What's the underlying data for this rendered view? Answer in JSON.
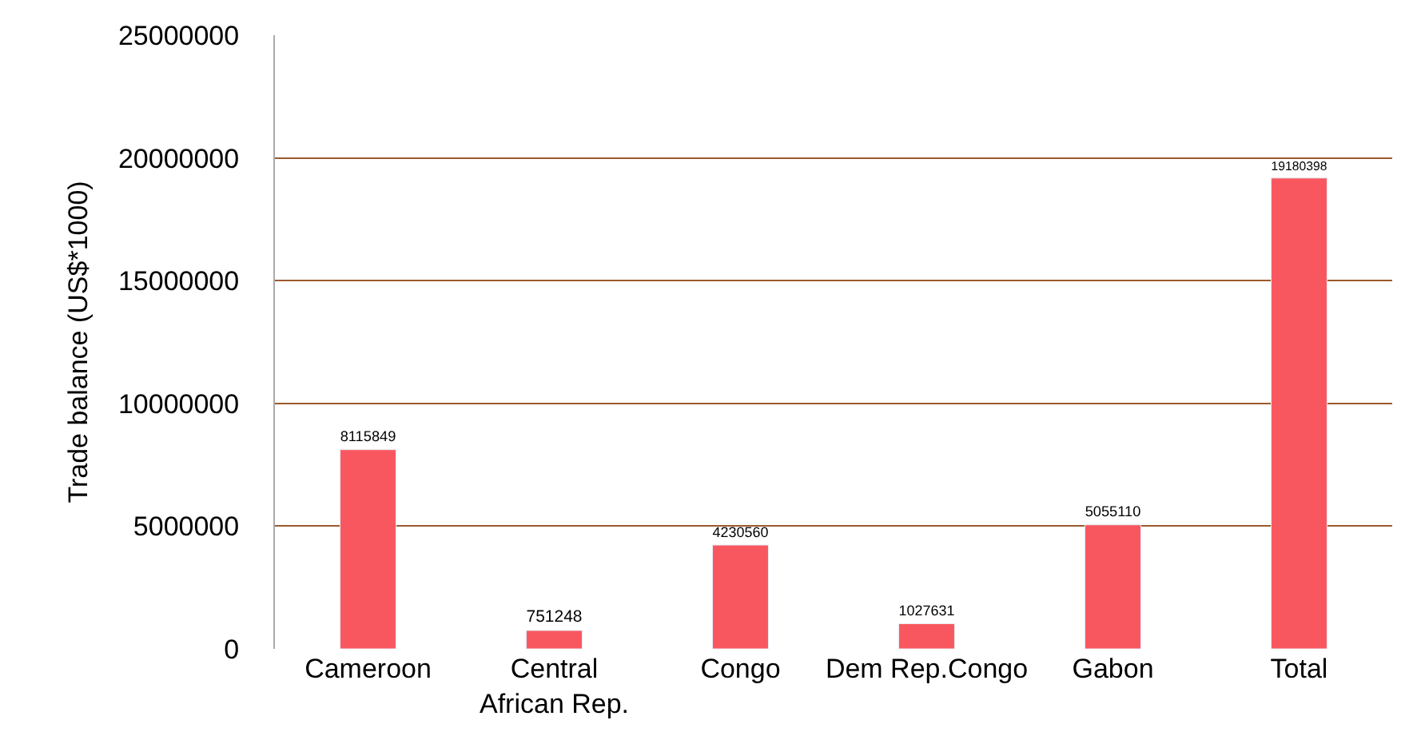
{
  "chart_data": {
    "type": "bar",
    "ylabel": "Trade balance (US$*1000)",
    "categories": [
      "Cameroon",
      "Central African Rep.",
      "Congo",
      "Dem Rep.Congo",
      "Gabon",
      "Total"
    ],
    "values": [
      8115849,
      751248,
      4230560,
      1027631,
      5055110,
      19180398
    ],
    "color": "#f9575f",
    "ylim": [
      0,
      25000000
    ],
    "yticks": [
      0,
      5000000,
      10000000,
      15000000,
      20000000,
      25000000
    ],
    "grid": "y",
    "data_labels": true
  }
}
